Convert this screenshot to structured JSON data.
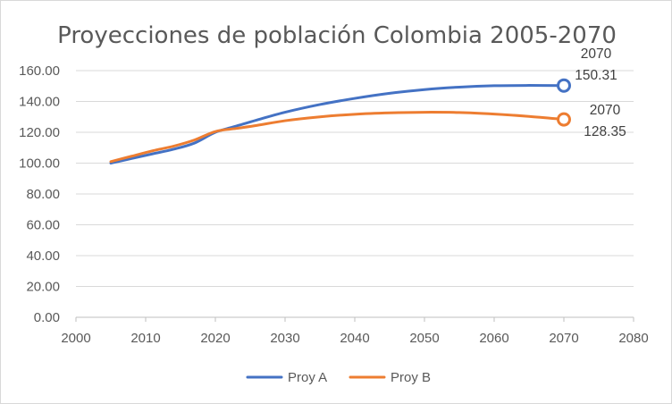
{
  "chart_data": {
    "type": "line",
    "title": "Proyecciones de población Colombia 2005-2070",
    "xlim": [
      2000,
      2080
    ],
    "ylim": [
      0,
      160
    ],
    "x_ticks": [
      "2000",
      "2010",
      "2020",
      "2030",
      "2040",
      "2050",
      "2060",
      "2070",
      "2080"
    ],
    "y_ticks": [
      "0.00",
      "20.00",
      "40.00",
      "60.00",
      "80.00",
      "100.00",
      "120.00",
      "140.00",
      "160.00"
    ],
    "x_tick_values": [
      2000,
      2010,
      2020,
      2030,
      2040,
      2050,
      2060,
      2070,
      2080
    ],
    "y_tick_values": [
      0,
      20,
      40,
      60,
      80,
      100,
      120,
      140,
      160
    ],
    "grid": "horizontal",
    "legend_position": "bottom",
    "series": [
      {
        "name": "Proy A",
        "color": "#4472c4",
        "x": [
          2005,
          2008,
          2011,
          2014,
          2017,
          2020,
          2023,
          2026,
          2030,
          2035,
          2040,
          2045,
          2050,
          2055,
          2060,
          2065,
          2070
        ],
        "y": [
          100,
          103,
          106,
          109,
          113,
          120,
          124,
          128,
          133,
          138,
          142,
          145.3,
          147.7,
          149.3,
          150.2,
          150.4,
          150.31
        ],
        "end_label": {
          "x_text": "2070",
          "y_text": "150.31"
        }
      },
      {
        "name": "Proy B",
        "color": "#ed7d31",
        "x": [
          2005,
          2008,
          2011,
          2014,
          2017,
          2020,
          2023,
          2026,
          2030,
          2035,
          2040,
          2045,
          2050,
          2055,
          2060,
          2065,
          2070
        ],
        "y": [
          101,
          104.5,
          108,
          111,
          115,
          120.5,
          122.5,
          124.5,
          127.5,
          130,
          131.7,
          132.6,
          133,
          132.8,
          131.8,
          130.3,
          128.35
        ],
        "end_label": {
          "x_text": "2070",
          "y_text": "128.35"
        }
      }
    ]
  }
}
